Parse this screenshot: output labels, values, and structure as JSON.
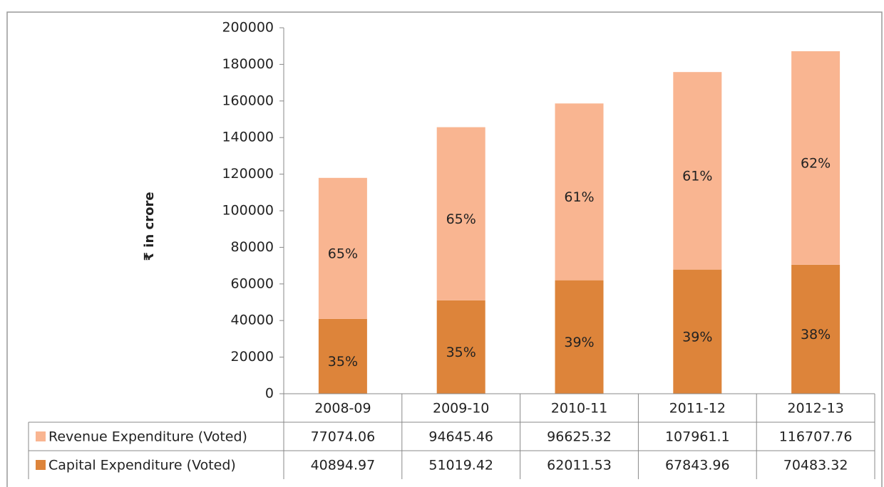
{
  "chart_data": {
    "type": "stacked_bar",
    "y_label": "₹ in crore",
    "categories": [
      "2008-09",
      "2009-10",
      "2010-11",
      "2011-12",
      "2012-13"
    ],
    "series": [
      {
        "name": "Revenue Expenditure (Voted)",
        "color": "#f9b591",
        "values": [
          77074.06,
          94645.46,
          96625.32,
          107961.1,
          116707.76
        ],
        "percent_labels": [
          "65%",
          "65%",
          "61%",
          "61%",
          "62%"
        ]
      },
      {
        "name": "Capital Expenditure (Voted)",
        "color": "#dd843a",
        "values": [
          40894.97,
          51019.42,
          62011.53,
          67843.96,
          70483.32
        ],
        "percent_labels": [
          "35%",
          "35%",
          "39%",
          "39%",
          "38%"
        ]
      }
    ],
    "ylim": [
      0,
      200000
    ],
    "yticks": [
      0,
      20000,
      40000,
      60000,
      80000,
      100000,
      120000,
      140000,
      160000,
      180000,
      200000
    ],
    "grid": false,
    "data_table": true
  }
}
